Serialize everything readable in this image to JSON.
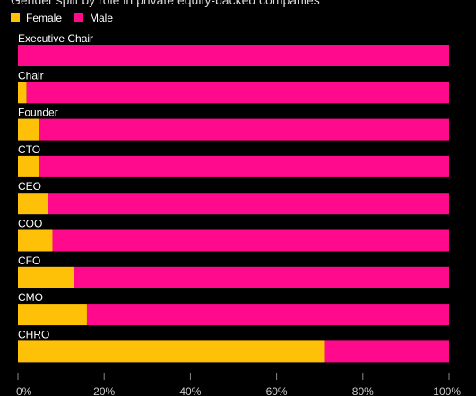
{
  "subtitle": "Gender split by role in private equity-backed companies",
  "legend": [
    {
      "label": "Female",
      "color": "#FFC107"
    },
    {
      "label": "Male",
      "color": "#FF0A8D"
    }
  ],
  "colors": {
    "female": "#FFC107",
    "male": "#FF0A8D",
    "background": "#000000",
    "text": "#FFFFFF",
    "axis_text": "#CCCCCC",
    "tick": "#888888"
  },
  "chart_data": {
    "type": "bar",
    "orientation": "horizontal",
    "stacked": true,
    "title": "",
    "subtitle": "Gender split by role in private equity-backed companies",
    "categories": [
      "Executive Chair",
      "Chair",
      "Founder",
      "CTO",
      "CEO",
      "COO",
      "CFO",
      "CMO",
      "CHRO"
    ],
    "series": [
      {
        "name": "Female",
        "values": [
          0,
          2,
          5,
          5,
          7,
          8,
          13,
          16,
          71
        ]
      },
      {
        "name": "Male",
        "values": [
          100,
          98,
          95,
          95,
          93,
          92,
          87,
          84,
          29
        ]
      }
    ],
    "xlim": [
      0,
      100
    ],
    "xticks": [
      "0%",
      "20%",
      "40%",
      "60%",
      "80%",
      "100%"
    ],
    "xlabel": "",
    "ylabel": "",
    "legend_position": "top-left",
    "grid": false
  }
}
